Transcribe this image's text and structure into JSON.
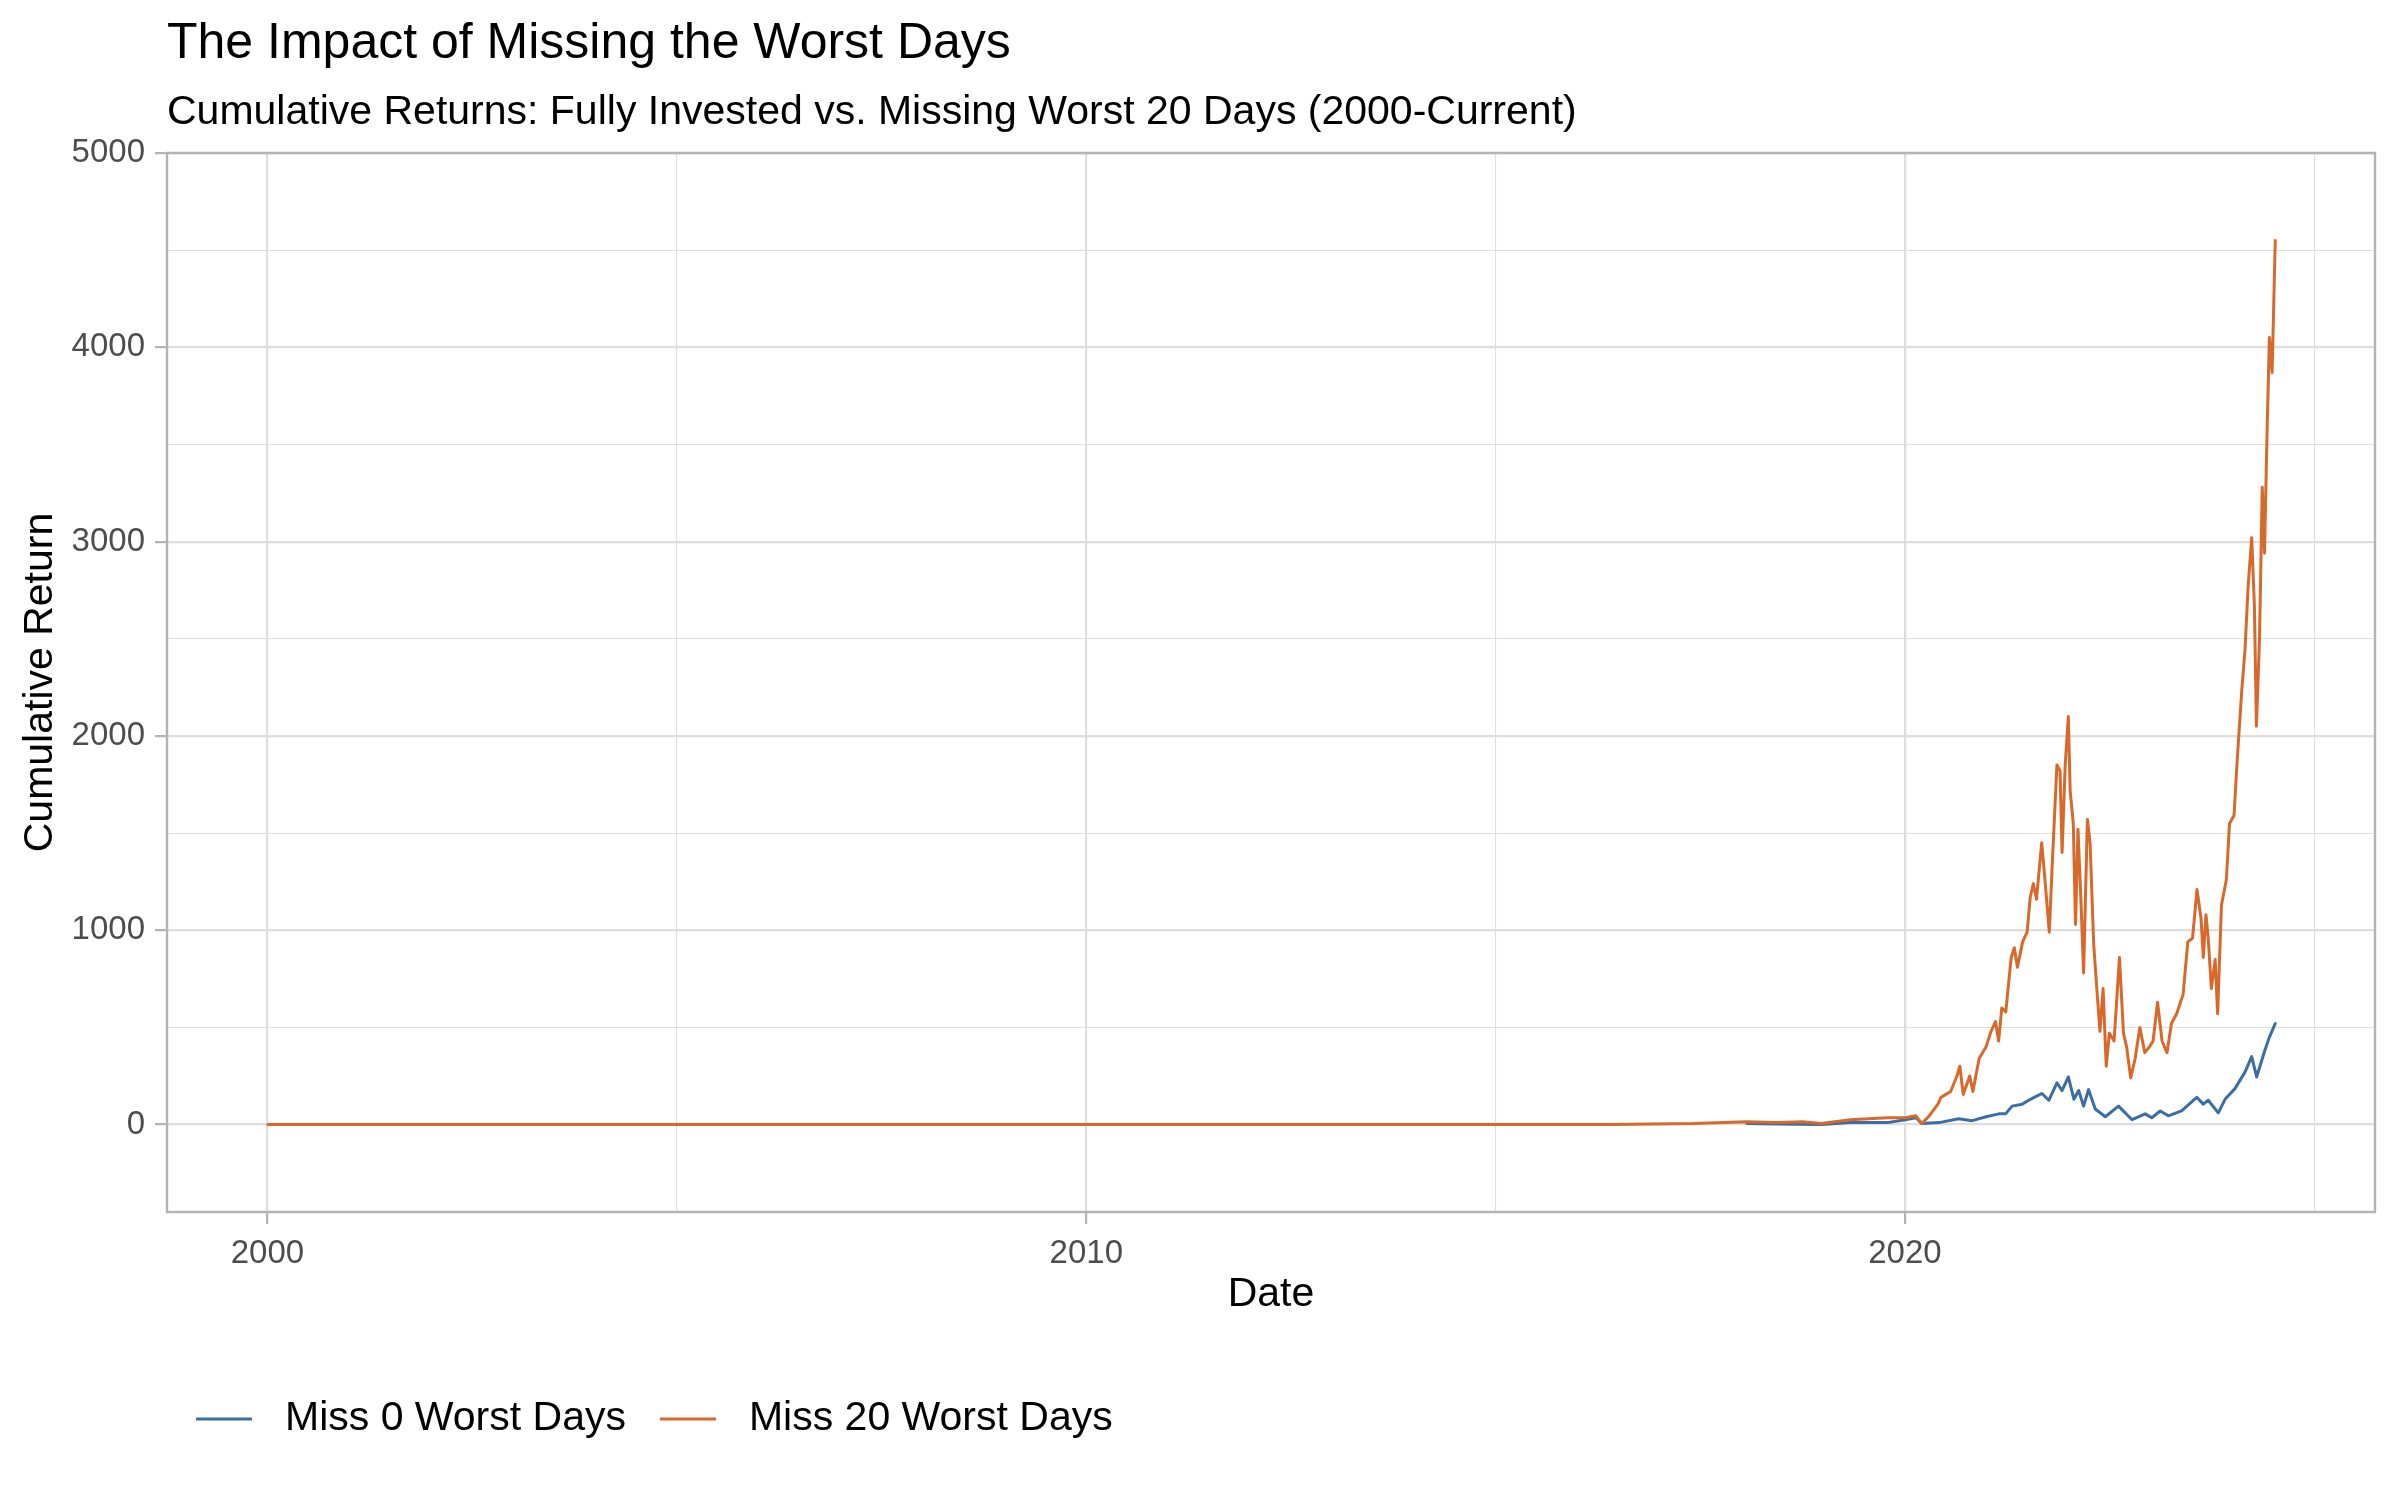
{
  "chart_data": {
    "type": "line",
    "title": "The Impact of Missing the Worst Days",
    "subtitle": "Cumulative Returns: Fully Invested vs. Missing Worst 20 Days (2000-Current)",
    "xlabel": "Date",
    "ylabel": "Cumulative Return",
    "xlim": [
      "1998-10-10",
      "2025-09-28"
    ],
    "xticks": [
      {
        "value": "2000-01-01",
        "label": "2000"
      },
      {
        "value": "2005-01-01",
        "label": null
      },
      {
        "value": "2010-01-01",
        "label": "2010"
      },
      {
        "value": "2015-01-01",
        "label": null
      },
      {
        "value": "2020-01-01",
        "label": "2020"
      },
      {
        "value": "2025-01-01",
        "label": null
      }
    ],
    "ylim": [
      -450,
      5000
    ],
    "yticks": [
      0,
      {
        "value": 500,
        "label": null
      },
      1000,
      {
        "value": 1500,
        "label": null
      },
      2000,
      {
        "value": 2500,
        "label": null
      },
      3000,
      {
        "value": 3500,
        "label": null
      },
      4000,
      {
        "value": 4500,
        "label": null
      },
      5000
    ],
    "grid": true,
    "legend": "bottom left",
    "series": [
      {
        "name": "Miss 0 Worst Days",
        "color": "#3a6ea5",
        "x": [
          "2018-01-26",
          "2018-12-24",
          "2019-05-01",
          "2019-10-15",
          "2020-01-02",
          "2020-02-19",
          "2020-03-16",
          "2020-06-01",
          "2020-08-28",
          "2020-10-27",
          "2020-12-28",
          "2021-02-23",
          "2021-03-25",
          "2021-04-23",
          "2021-06-07",
          "2021-07-14",
          "2021-09-03",
          "2021-10-04",
          "2021-11-09",
          "2021-12-02",
          "2021-12-30",
          "2022-01-24",
          "2022-02-14",
          "2022-03-08",
          "2022-03-30",
          "2022-04-29",
          "2022-06-13",
          "2022-08-11",
          "2022-10-10",
          "2022-12-08",
          "2023-01-06",
          "2023-02-13",
          "2023-03-21",
          "2023-05-19",
          "2023-07-26",
          "2023-08-24",
          "2023-09-15",
          "2023-10-30",
          "2023-11-29",
          "2024-01-12",
          "2024-02-26",
          "2024-03-27",
          "2024-04-18",
          "2024-05-24",
          "2024-06-14",
          "2024-07-10"
        ],
        "values": [
          5,
          0,
          10,
          10,
          25,
          35,
          5,
          10,
          30,
          20,
          40,
          55,
          55,
          95,
          105,
          130,
          160,
          125,
          215,
          175,
          245,
          130,
          175,
          95,
          180,
          80,
          40,
          95,
          25,
          55,
          35,
          70,
          45,
          70,
          140,
          105,
          125,
          60,
          130,
          185,
          270,
          350,
          245,
          380,
          450,
          520
        ]
      },
      {
        "name": "Miss 20 Worst Days",
        "color": "#d8692a",
        "x": [
          "2000-01-03",
          "2002-01-02",
          "2004-01-02",
          "2006-01-03",
          "2008-01-02",
          "2010-01-04",
          "2012-01-03",
          "2014-01-02",
          "2015-06-01",
          "2016-06-01",
          "2017-06-01",
          "2018-01-26",
          "2018-06-01",
          "2018-10-01",
          "2018-12-24",
          "2019-05-01",
          "2019-10-15",
          "2020-01-02",
          "2020-02-19",
          "2020-03-16",
          "2020-04-15",
          "2020-05-27",
          "2020-06-10",
          "2020-07-23",
          "2020-08-20",
          "2020-09-02",
          "2020-09-17",
          "2020-10-16",
          "2020-10-30",
          "2020-11-27",
          "2020-12-28",
          "2021-01-19",
          "2021-02-08",
          "2021-02-22",
          "2021-03-08",
          "2021-03-26",
          "2021-04-19",
          "2021-05-03",
          "2021-05-17",
          "2021-06-09",
          "2021-06-29",
          "2021-07-13",
          "2021-07-27",
          "2021-08-10",
          "2021-09-02",
          "2021-09-13",
          "2021-10-06",
          "2021-10-20",
          "2021-11-09",
          "2021-11-23",
          "2021-12-02",
          "2021-12-16",
          "2021-12-30",
          "2022-01-07",
          "2022-01-21",
          "2022-01-31",
          "2022-02-11",
          "2022-02-25",
          "2022-03-08",
          "2022-03-25",
          "2022-04-06",
          "2022-04-22",
          "2022-05-06",
          "2022-05-20",
          "2022-06-03",
          "2022-06-17",
          "2022-07-01",
          "2022-07-22",
          "2022-08-15",
          "2022-09-02",
          "2022-09-16",
          "2022-10-04",
          "2022-10-24",
          "2022-11-14",
          "2022-12-06",
          "2022-12-27",
          "2023-01-12",
          "2023-02-01",
          "2023-02-21",
          "2023-03-15",
          "2023-04-04",
          "2023-04-27",
          "2023-05-26",
          "2023-06-16",
          "2023-07-07",
          "2023-07-27",
          "2023-08-14",
          "2023-08-24",
          "2023-09-05",
          "2023-09-15",
          "2023-09-29",
          "2023-10-16",
          "2023-10-27",
          "2023-11-13",
          "2023-12-05",
          "2023-12-19",
          "2024-01-08",
          "2024-01-22",
          "2024-02-12",
          "2024-02-26",
          "2024-03-11",
          "2024-03-27",
          "2024-04-08",
          "2024-04-17",
          "2024-05-01",
          "2024-05-13",
          "2024-05-23",
          "2024-06-04",
          "2024-06-14",
          "2024-06-26",
          "2024-07-10"
        ],
        "values": [
          0,
          0,
          0,
          0,
          0,
          0,
          0,
          0,
          0,
          0,
          5,
          15,
          10,
          15,
          5,
          25,
          35,
          35,
          45,
          5,
          40,
          105,
          140,
          170,
          250,
          300,
          155,
          250,
          170,
          340,
          400,
          480,
          530,
          430,
          600,
          580,
          860,
          910,
          810,
          940,
          990,
          1170,
          1240,
          1160,
          1450,
          1310,
          990,
          1360,
          1850,
          1820,
          1400,
          1850,
          2100,
          1720,
          1550,
          1030,
          1520,
          1130,
          780,
          1570,
          1450,
          930,
          700,
          480,
          700,
          300,
          470,
          430,
          860,
          470,
          400,
          240,
          340,
          500,
          370,
          400,
          430,
          630,
          430,
          370,
          520,
          570,
          670,
          940,
          960,
          1210,
          1060,
          860,
          1080,
          960,
          700,
          850,
          570,
          1130,
          1260,
          1550,
          1590,
          1870,
          2240,
          2440,
          2770,
          3020,
          2670,
          2050,
          2510,
          3280,
          2940,
          3590,
          4050,
          3870,
          4550
        ]
      }
    ]
  }
}
